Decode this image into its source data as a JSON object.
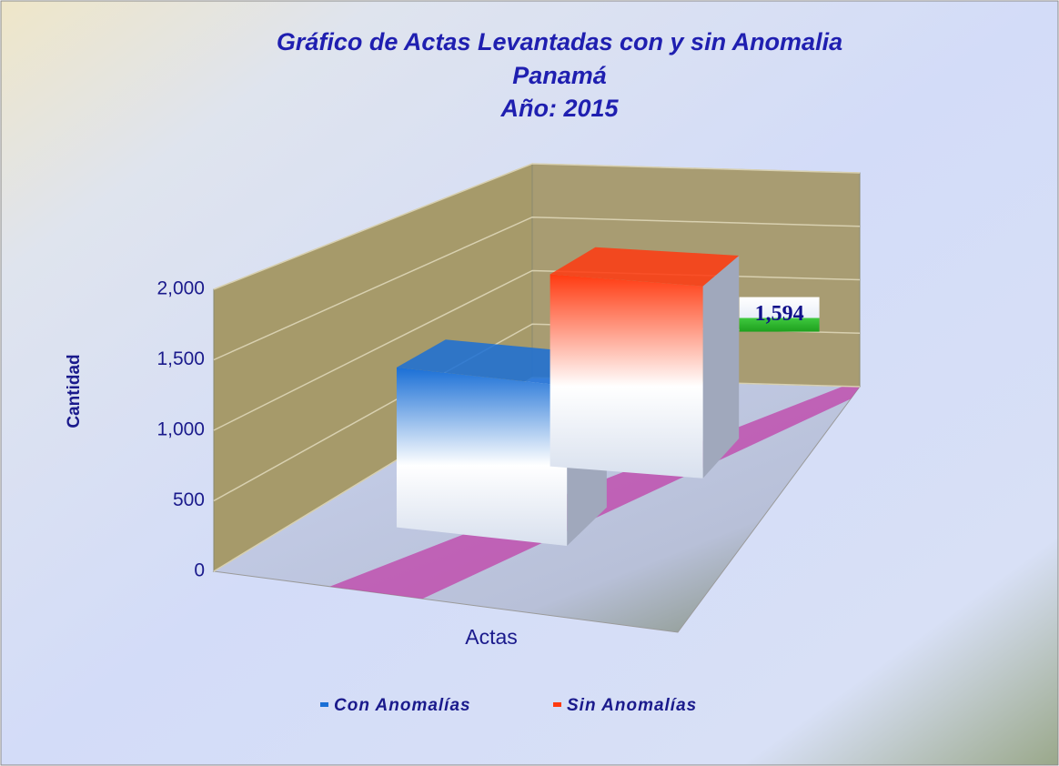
{
  "chart_data": {
    "type": "bar3d",
    "title_lines": [
      "Gráfico de Actas Levantadas con y sin Anomalia",
      "Panamá",
      "Año:  2015"
    ],
    "y_label": "Cantidad",
    "categories": [
      "Actas"
    ],
    "series": [
      {
        "name": "Con Anomalías",
        "color": "#1a6fd6",
        "values": [
          1216
        ],
        "value_labels": [
          "1,216"
        ]
      },
      {
        "name": "Sin Anomalías",
        "color": "#ff3a10",
        "values": [
          1594
        ],
        "value_labels": [
          "1,594"
        ]
      }
    ],
    "ylim": [
      0,
      2000
    ],
    "yticks": [
      0,
      500,
      {
        "value": 1000,
        "label": "1,000"
      },
      {
        "value": 1500,
        "label": "1,500"
      },
      {
        "value": 2000,
        "label": "2,000"
      }
    ],
    "grid": true,
    "legend": "bottom"
  }
}
